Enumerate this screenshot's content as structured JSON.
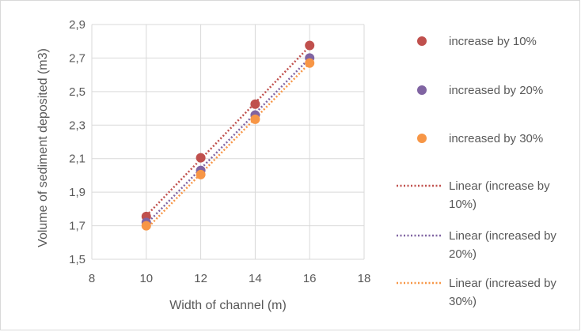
{
  "chart_data": {
    "type": "scatter",
    "xlabel": "Width of channel (m)",
    "ylabel": "Volume of sediment deposited (m3)",
    "xlim": [
      8,
      18
    ],
    "ylim": [
      1.5,
      2.9
    ],
    "x_ticks": [
      "8",
      "10",
      "12",
      "14",
      "16",
      "18"
    ],
    "y_ticks": [
      "1,5",
      "1,7",
      "1,9",
      "2,1",
      "2,3",
      "2,5",
      "2,7",
      "2,9"
    ],
    "grid": true,
    "legend_position": "right",
    "series": [
      {
        "name": "increase by 10%",
        "color": "#c0504d",
        "x": [
          10,
          12,
          14,
          16
        ],
        "y": [
          1.755,
          2.105,
          2.425,
          2.775
        ]
      },
      {
        "name": "increased by 20%",
        "color": "#8064a2",
        "x": [
          10,
          12,
          14,
          16
        ],
        "y": [
          1.72,
          2.03,
          2.36,
          2.7
        ]
      },
      {
        "name": "increased by 30%",
        "color": "#f79646",
        "x": [
          10,
          12,
          14,
          16
        ],
        "y": [
          1.7,
          2.005,
          2.335,
          2.67
        ]
      }
    ],
    "trendlines": [
      {
        "name_line1": "Linear (increase by",
        "name_line2": "10%)",
        "color": "#c0504d",
        "x": [
          10,
          16
        ],
        "y": [
          1.76,
          2.77
        ]
      },
      {
        "name_line1": "Linear (increased by",
        "name_line2": "20%)",
        "color": "#8064a2",
        "x": [
          10,
          16
        ],
        "y": [
          1.71,
          2.7
        ]
      },
      {
        "name_line1": "Linear (increased by",
        "name_line2": "30%)",
        "color": "#f79646",
        "x": [
          10,
          16
        ],
        "y": [
          1.68,
          2.67
        ]
      }
    ]
  }
}
